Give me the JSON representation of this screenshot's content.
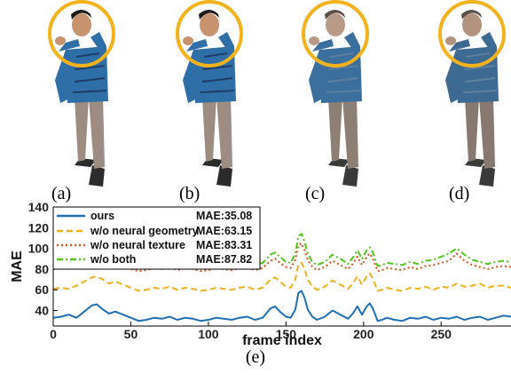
{
  "figure": {
    "panels": [
      {
        "label": "(a)",
        "variant": "ours"
      },
      {
        "label": "(b)",
        "variant": "w/o neural geometry"
      },
      {
        "label": "(c)",
        "variant": "w/o neural texture"
      },
      {
        "label": "(d)",
        "variant": "w/o both"
      }
    ],
    "chart_label": "(e)",
    "colors": {
      "circle": "#F2B21B",
      "shirt": "#2E6FA8",
      "shirt_dark": "#1E3E66",
      "pants": "#9C8C82",
      "skin": "#C7926E",
      "hair": "#1E1B1A",
      "shoes": "#2B2B2B"
    }
  },
  "chart_data": {
    "type": "line",
    "xlabel": "frame index",
    "ylabel": "MAE",
    "xlim": [
      0,
      295
    ],
    "ylim": [
      25,
      140
    ],
    "xticks": [
      0,
      50,
      100,
      150,
      200,
      250
    ],
    "yticks": [
      40,
      60,
      80,
      100,
      120,
      140
    ],
    "grid": false,
    "legend_position": "top-left",
    "series": [
      {
        "name": "ours",
        "mae_label": "MAE:35.08",
        "color": "#1F6FB5",
        "dash": "solid",
        "x": [
          0,
          5,
          10,
          15,
          20,
          25,
          28,
          32,
          36,
          40,
          45,
          50,
          55,
          60,
          65,
          70,
          75,
          80,
          85,
          90,
          95,
          100,
          105,
          110,
          115,
          120,
          125,
          130,
          135,
          140,
          143,
          146,
          150,
          153,
          156,
          158,
          160,
          162,
          164,
          167,
          170,
          175,
          180,
          185,
          190,
          193,
          196,
          199,
          202,
          204,
          206,
          209,
          212,
          215,
          220,
          225,
          230,
          235,
          240,
          245,
          250,
          255,
          260,
          265,
          270,
          275,
          280,
          285,
          290,
          295
        ],
        "y": [
          33,
          34,
          36,
          33,
          39,
          45,
          46,
          41,
          37,
          39,
          36,
          33,
          30,
          31,
          33,
          32,
          34,
          31,
          33,
          32,
          30,
          31,
          33,
          32,
          31,
          33,
          34,
          31,
          33,
          42,
          44,
          39,
          34,
          33,
          41,
          57,
          59,
          52,
          41,
          34,
          31,
          34,
          40,
          36,
          32,
          37,
          44,
          36,
          44,
          47,
          42,
          30,
          31,
          33,
          31,
          30,
          33,
          32,
          34,
          31,
          33,
          32,
          34,
          31,
          33,
          34,
          31,
          33,
          35,
          34
        ]
      },
      {
        "name": "w/o neural geometry",
        "mae_label": "MAE:63.15",
        "color": "#EDB120",
        "dash": "dashed",
        "x": [
          0,
          5,
          10,
          15,
          20,
          25,
          28,
          32,
          36,
          40,
          45,
          50,
          55,
          60,
          65,
          70,
          75,
          80,
          85,
          90,
          95,
          100,
          105,
          110,
          115,
          120,
          125,
          130,
          135,
          140,
          143,
          146,
          150,
          153,
          156,
          158,
          160,
          162,
          164,
          167,
          170,
          175,
          180,
          185,
          190,
          193,
          196,
          199,
          202,
          204,
          206,
          209,
          212,
          215,
          220,
          225,
          230,
          235,
          240,
          245,
          250,
          255,
          260,
          265,
          270,
          275,
          280,
          285,
          290,
          295
        ],
        "y": [
          61,
          62,
          61,
          64,
          68,
          72,
          73,
          70,
          66,
          68,
          65,
          62,
          59,
          60,
          62,
          61,
          63,
          60,
          62,
          61,
          59,
          60,
          62,
          61,
          60,
          62,
          63,
          60,
          62,
          70,
          72,
          68,
          63,
          62,
          70,
          85,
          86,
          80,
          70,
          63,
          60,
          63,
          69,
          65,
          61,
          66,
          73,
          65,
          73,
          76,
          71,
          59,
          60,
          62,
          60,
          59,
          62,
          61,
          63,
          60,
          63,
          62,
          66,
          63,
          64,
          66,
          62,
          64,
          64,
          62
        ]
      },
      {
        "name": "w/o neural texture",
        "mae_label": "MAE:83.31",
        "color": "#D95319",
        "dash": "dotted",
        "x": [
          0,
          5,
          10,
          15,
          20,
          25,
          28,
          32,
          36,
          40,
          45,
          50,
          55,
          60,
          65,
          70,
          75,
          80,
          85,
          90,
          95,
          100,
          105,
          110,
          115,
          120,
          125,
          130,
          135,
          140,
          143,
          146,
          150,
          153,
          156,
          158,
          160,
          162,
          164,
          167,
          170,
          175,
          180,
          185,
          190,
          193,
          196,
          199,
          202,
          204,
          206,
          209,
          212,
          215,
          220,
          225,
          230,
          235,
          240,
          245,
          250,
          255,
          260,
          265,
          270,
          275,
          280,
          285,
          290,
          295
        ],
        "y": [
          80,
          81,
          80,
          82,
          84,
          86,
          85,
          84,
          82,
          83,
          81,
          80,
          78,
          79,
          81,
          80,
          82,
          79,
          81,
          80,
          78,
          79,
          81,
          80,
          79,
          81,
          82,
          79,
          81,
          88,
          90,
          86,
          82,
          81,
          89,
          103,
          105,
          98,
          89,
          82,
          79,
          82,
          88,
          84,
          80,
          85,
          92,
          84,
          92,
          95,
          90,
          78,
          79,
          81,
          80,
          79,
          82,
          80,
          83,
          84,
          86,
          88,
          95,
          88,
          84,
          82,
          80,
          82,
          83,
          82
        ]
      },
      {
        "name": "w/o both",
        "mae_label": "MAE:87.82",
        "color": "#52C41A",
        "dash": "dashdot",
        "x": [
          0,
          5,
          10,
          15,
          20,
          25,
          28,
          32,
          36,
          40,
          45,
          50,
          55,
          60,
          65,
          70,
          75,
          80,
          85,
          90,
          95,
          100,
          105,
          110,
          115,
          120,
          125,
          130,
          135,
          140,
          143,
          146,
          150,
          153,
          156,
          158,
          160,
          162,
          164,
          167,
          170,
          175,
          180,
          185,
          190,
          193,
          196,
          199,
          202,
          204,
          206,
          209,
          212,
          215,
          220,
          225,
          230,
          235,
          240,
          245,
          250,
          255,
          260,
          265,
          270,
          275,
          280,
          285,
          290,
          295
        ],
        "y": [
          85,
          86,
          85,
          87,
          89,
          91,
          90,
          89,
          87,
          88,
          86,
          85,
          83,
          84,
          86,
          85,
          87,
          84,
          86,
          85,
          83,
          84,
          86,
          85,
          84,
          86,
          87,
          84,
          86,
          94,
          96,
          92,
          87,
          86,
          95,
          112,
          114,
          106,
          95,
          87,
          84,
          87,
          94,
          90,
          85,
          91,
          98,
          90,
          98,
          101,
          96,
          83,
          84,
          86,
          85,
          84,
          87,
          85,
          88,
          89,
          92,
          95,
          100,
          94,
          89,
          87,
          85,
          87,
          88,
          87
        ]
      }
    ]
  }
}
